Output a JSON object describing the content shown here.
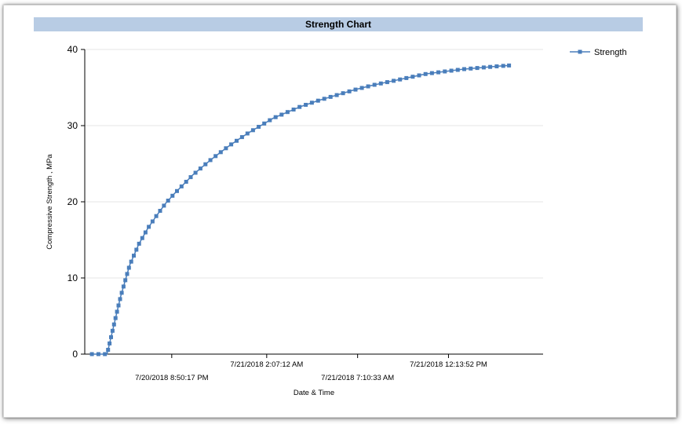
{
  "chart_data": {
    "type": "line",
    "title": "Strength Chart",
    "xlabel": "Date & Time",
    "ylabel": "Compressive Strength , MPa",
    "ylim": [
      0,
      40
    ],
    "y_ticks": [
      0,
      10,
      20,
      30,
      40
    ],
    "x_ticks": [
      "7/20/2018 8:50:17 PM",
      "7/21/2018 2:07:12 AM",
      "7/21/2018 7:10:33 AM",
      "7/21/2018 12:13:52 PM"
    ],
    "grid": "horizontal",
    "legend_position": "top-right",
    "colors": {
      "series": "#4a7ebb",
      "title_bar": "#b8cce4",
      "grid": "#e6e6e6"
    },
    "series": [
      {
        "name": "Strength",
        "x": [
          "7/20/2018 4:23:52 PM",
          "7/20/2018 4:49:05 PM",
          "7/20/2018 5:14:18 PM",
          "7/20/2018 6:00:00 PM",
          "7/20/2018 6:30:00 PM",
          "7/20/2018 7:00:00 PM",
          "7/20/2018 7:30:00 PM",
          "7/20/2018 8:00:00 PM",
          "7/20/2018 8:30:00 PM",
          "7/20/2018 9:00:00 PM",
          "7/20/2018 9:30:00 PM",
          "7/20/2018 10:00:00 PM",
          "7/20/2018 10:30:00 PM",
          "7/20/2018 11:00:00 PM",
          "7/20/2018 11:30:00 PM",
          "7/21/2018 12:00:00 AM",
          "7/21/2018 12:30:00 AM",
          "7/21/2018 1:00:00 AM",
          "7/21/2018 1:30:00 AM",
          "7/21/2018 2:00:00 AM",
          "7/21/2018 2:30:00 AM",
          "7/21/2018 3:00:00 AM",
          "7/21/2018 4:00:00 AM",
          "7/21/2018 5:00:00 AM",
          "7/21/2018 6:00:00 AM",
          "7/21/2018 7:00:00 AM",
          "7/21/2018 8:00:00 AM",
          "7/21/2018 9:00:00 AM",
          "7/21/2018 10:00:00 AM",
          "7/21/2018 11:00:00 AM",
          "7/21/2018 12:00:00 PM",
          "7/21/2018 1:00:00 PM",
          "7/21/2018 2:00:00 PM",
          "7/21/2018 3:00:00 PM",
          "7/21/2018 3:36:00 PM"
        ],
        "values": [
          0,
          0,
          0,
          7.6,
          11.7,
          14.4,
          16.5,
          18.2,
          19.8,
          21.1,
          22.3,
          23.5,
          24.5,
          25.5,
          26.4,
          27.3,
          28.1,
          28.9,
          29.6,
          30.3,
          31.0,
          31.5,
          32.5,
          33.3,
          34.0,
          34.7,
          35.3,
          35.8,
          36.3,
          36.8,
          37.1,
          37.4,
          37.6,
          37.8,
          37.9
        ]
      }
    ]
  }
}
